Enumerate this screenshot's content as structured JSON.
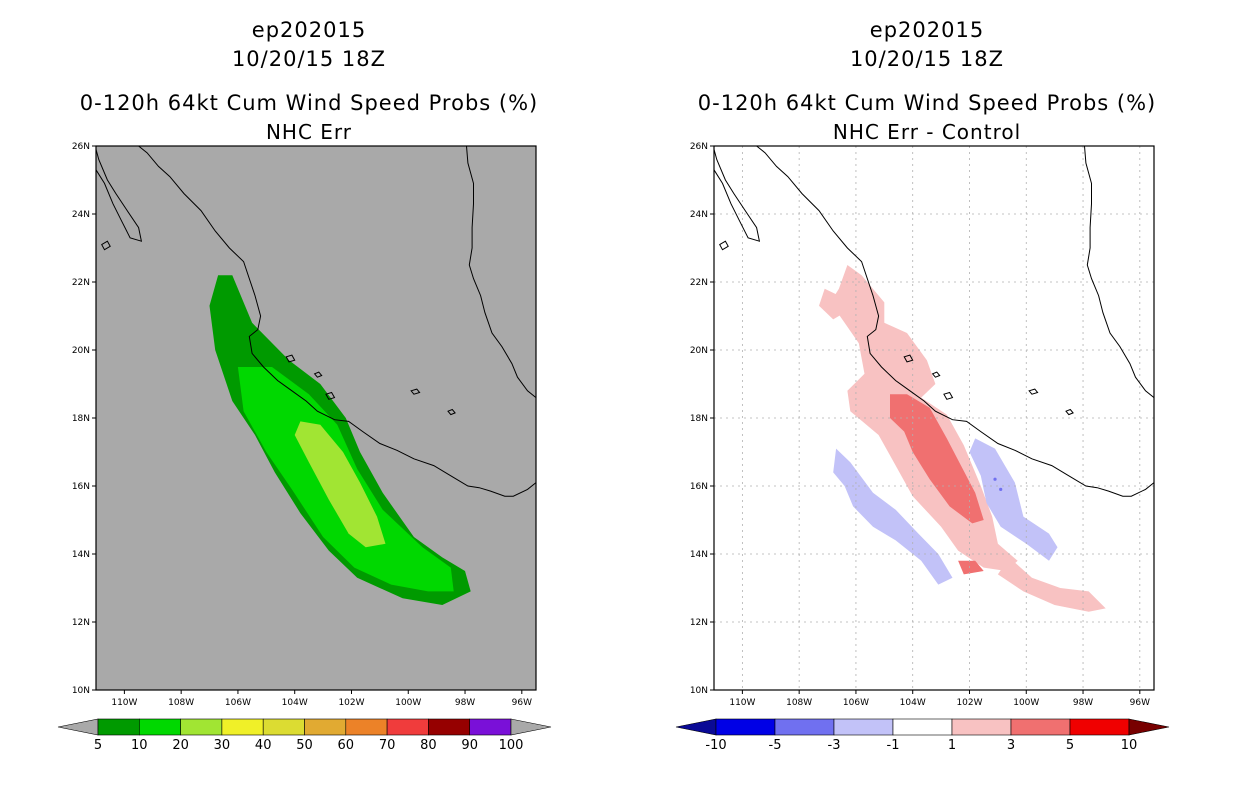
{
  "chart_data": [
    {
      "type": "heatmap",
      "storm": "ep202015",
      "datetime": "10/20/15 18Z",
      "title": "0-120h 64kt Cum Wind Speed Probs (%)",
      "subtitle": "NHC Err",
      "xlabel": "",
      "ylabel": "",
      "xlim": [
        -111,
        -95.5
      ],
      "ylim": [
        10,
        26
      ],
      "x_ticks": [
        -110,
        -108,
        -106,
        -104,
        -102,
        -100,
        -98,
        -96
      ],
      "x_tick_labels": [
        "110W",
        "108W",
        "106W",
        "104W",
        "102W",
        "100W",
        "98W",
        "96W"
      ],
      "y_ticks": [
        10,
        12,
        14,
        16,
        18,
        20,
        22,
        24,
        26
      ],
      "y_tick_labels": [
        "10N",
        "12N",
        "14N",
        "16N",
        "18N",
        "20N",
        "22N",
        "24N",
        "26N"
      ],
      "grid": false,
      "background": "#a9a9a9",
      "colorbar": {
        "levels": [
          "5",
          "10",
          "20",
          "30",
          "40",
          "50",
          "60",
          "70",
          "80",
          "90",
          "100"
        ],
        "colors": [
          "#009a00",
          "#00d800",
          "#a1e533",
          "#f0f028",
          "#dcdc32",
          "#e1aa32",
          "#ec8228",
          "#f03c3c",
          "#960000",
          "#7a10d8"
        ],
        "left_extension": "#a9a9a9",
        "right_extension": "#a9a9a9"
      },
      "filled_regions": [
        {
          "level": "5-10",
          "color": "#009a00",
          "polygon": [
            [
              -106.7,
              22.2
            ],
            [
              -106.2,
              22.2
            ],
            [
              -105.5,
              20.8
            ],
            [
              -104.2,
              19.7
            ],
            [
              -103.1,
              19
            ],
            [
              -102.2,
              18
            ],
            [
              -101.7,
              17
            ],
            [
              -100.9,
              15.8
            ],
            [
              -99.8,
              14.5
            ],
            [
              -98.8,
              13.9
            ],
            [
              -98,
              13.5
            ],
            [
              -97.8,
              12.9
            ],
            [
              -98.8,
              12.5
            ],
            [
              -100.2,
              12.7
            ],
            [
              -101.8,
              13.3
            ],
            [
              -102.8,
              14.1
            ],
            [
              -103.8,
              15.2
            ],
            [
              -104.7,
              16.4
            ],
            [
              -105.4,
              17.5
            ],
            [
              -106.2,
              18.5
            ],
            [
              -106.8,
              20
            ],
            [
              -107,
              21.3
            ]
          ]
        },
        {
          "level": "10-20",
          "color": "#00d800",
          "polygon": [
            [
              -106,
              19.5
            ],
            [
              -104.8,
              19.5
            ],
            [
              -103.5,
              18.7
            ],
            [
              -102.5,
              17.8
            ],
            [
              -101.8,
              16.5
            ],
            [
              -100.9,
              15.3
            ],
            [
              -99.5,
              14.2
            ],
            [
              -98.5,
              13.6
            ],
            [
              -98.4,
              12.9
            ],
            [
              -99.3,
              12.9
            ],
            [
              -100.6,
              13.1
            ],
            [
              -101.9,
              13.6
            ],
            [
              -103,
              14.5
            ],
            [
              -104.1,
              15.9
            ],
            [
              -105,
              17
            ],
            [
              -105.8,
              18.2
            ]
          ]
        },
        {
          "level": "20-30",
          "color": "#a1e533",
          "polygon": [
            [
              -103.8,
              17.9
            ],
            [
              -103.1,
              17.8
            ],
            [
              -102.3,
              17
            ],
            [
              -101.7,
              16.1
            ],
            [
              -101.1,
              15.1
            ],
            [
              -100.8,
              14.3
            ],
            [
              -101.5,
              14.2
            ],
            [
              -102.1,
              14.6
            ],
            [
              -102.8,
              15.6
            ],
            [
              -103.5,
              16.7
            ],
            [
              -104,
              17.5
            ]
          ]
        }
      ]
    },
    {
      "type": "heatmap",
      "storm": "ep202015",
      "datetime": "10/20/15 18Z",
      "title": "0-120h 64kt Cum Wind Speed Probs (%)",
      "subtitle": "NHC Err - Control",
      "xlabel": "",
      "ylabel": "",
      "xlim": [
        -111,
        -95.5
      ],
      "ylim": [
        10,
        26
      ],
      "x_ticks": [
        -110,
        -108,
        -106,
        -104,
        -102,
        -100,
        -98,
        -96
      ],
      "x_tick_labels": [
        "110W",
        "108W",
        "106W",
        "104W",
        "102W",
        "100W",
        "98W",
        "96W"
      ],
      "y_ticks": [
        10,
        12,
        14,
        16,
        18,
        20,
        22,
        24,
        26
      ],
      "y_tick_labels": [
        "10N",
        "12N",
        "14N",
        "16N",
        "18N",
        "20N",
        "22N",
        "24N",
        "26N"
      ],
      "grid": true,
      "background": "#ffffff",
      "colorbar": {
        "levels": [
          "-10",
          "-5",
          "-3",
          "-1",
          "1",
          "3",
          "5",
          "10"
        ],
        "colors": [
          "#0000e6",
          "#7070f0",
          "#c2c2f8",
          "#ffffff",
          "#f8c2c2",
          "#f07070",
          "#f00000"
        ],
        "left_extension": "#0a0a96",
        "right_extension": "#780000"
      },
      "filled_regions": [
        {
          "level": "1-3",
          "color": "#f8c2c2",
          "polygon": [
            [
              -106.3,
              22.5
            ],
            [
              -105.8,
              22.2
            ],
            [
              -105,
              21.4
            ],
            [
              -105,
              20.8
            ],
            [
              -104.2,
              20.5
            ],
            [
              -103.5,
              19.7
            ],
            [
              -103.2,
              19
            ],
            [
              -103.7,
              18.6
            ],
            [
              -102.8,
              18.1
            ],
            [
              -102.2,
              17.2
            ],
            [
              -101.6,
              16
            ],
            [
              -101.2,
              15.1
            ],
            [
              -101,
              14.3
            ],
            [
              -100.3,
              13.8
            ],
            [
              -100.7,
              13.5
            ],
            [
              -101.5,
              13.6
            ],
            [
              -102.4,
              14.1
            ],
            [
              -103,
              14.8
            ],
            [
              -104,
              15.7
            ],
            [
              -104.8,
              16.9
            ],
            [
              -105.2,
              17.5
            ],
            [
              -106.2,
              18.2
            ],
            [
              -106.3,
              18.8
            ],
            [
              -105.7,
              19.3
            ],
            [
              -105.9,
              20.2
            ],
            [
              -106.4,
              20.8
            ],
            [
              -106.9,
              21.4
            ],
            [
              -106.6,
              21.8
            ]
          ]
        },
        {
          "level": "1-3",
          "color": "#f8c2c2",
          "polygon": [
            [
              -107.1,
              21.8
            ],
            [
              -106.6,
              21.6
            ],
            [
              -106.2,
              21.2
            ],
            [
              -106.8,
              20.9
            ],
            [
              -107.3,
              21.3
            ]
          ]
        },
        {
          "level": "1-3",
          "color": "#f8c2c2",
          "polygon": [
            [
              -100.6,
              13.9
            ],
            [
              -99.8,
              13.3
            ],
            [
              -98.8,
              13
            ],
            [
              -97.8,
              12.9
            ],
            [
              -97.2,
              12.4
            ],
            [
              -97.8,
              12.3
            ],
            [
              -99,
              12.5
            ],
            [
              -100.1,
              12.9
            ],
            [
              -101,
              13.4
            ]
          ]
        },
        {
          "level": "3-5",
          "color": "#f07070",
          "polygon": [
            [
              -104.8,
              18.7
            ],
            [
              -104.2,
              18.7
            ],
            [
              -103.4,
              18.3
            ],
            [
              -102.8,
              17.4
            ],
            [
              -102.3,
              16.6
            ],
            [
              -101.8,
              15.8
            ],
            [
              -101.5,
              15
            ],
            [
              -101.9,
              14.9
            ],
            [
              -102.7,
              15.4
            ],
            [
              -103.4,
              16.2
            ],
            [
              -104,
              17
            ],
            [
              -104.3,
              17.6
            ],
            [
              -104.8,
              18
            ]
          ]
        },
        {
          "level": "3-5",
          "color": "#f07070",
          "polygon": [
            [
              -101.8,
              13.8
            ],
            [
              -101.5,
              13.5
            ],
            [
              -102.2,
              13.4
            ],
            [
              -102.4,
              13.8
            ]
          ]
        },
        {
          "level": "-1--3",
          "color": "#c2c2f8",
          "polygon": [
            [
              -106.8,
              16.4
            ],
            [
              -106.4,
              16
            ],
            [
              -106.1,
              15.4
            ],
            [
              -105.4,
              14.8
            ],
            [
              -104.6,
              14.4
            ],
            [
              -103.7,
              13.8
            ],
            [
              -103.1,
              13.1
            ],
            [
              -102.6,
              13.3
            ],
            [
              -103.1,
              14
            ],
            [
              -103.8,
              14.6
            ],
            [
              -104.6,
              15.3
            ],
            [
              -105.4,
              15.8
            ],
            [
              -106.2,
              16.7
            ],
            [
              -106.7,
              17.1
            ]
          ]
        },
        {
          "level": "-1--3",
          "color": "#c2c2f8",
          "polygon": [
            [
              -101.8,
              17.4
            ],
            [
              -101.1,
              17.1
            ],
            [
              -100.4,
              16.1
            ],
            [
              -100.1,
              15.1
            ],
            [
              -99.2,
              14.6
            ],
            [
              -98.9,
              14.2
            ],
            [
              -99.2,
              13.8
            ],
            [
              -100,
              14.3
            ],
            [
              -100.9,
              14.8
            ],
            [
              -101.4,
              15.5
            ],
            [
              -101.6,
              16.3
            ],
            [
              -102,
              17
            ]
          ]
        }
      ],
      "point_markers": [
        {
          "x": -104.6,
          "y": 18.5,
          "color": "#f07070"
        },
        {
          "x": -101.1,
          "y": 16.2,
          "color": "#7070f0"
        },
        {
          "x": -100.9,
          "y": 15.9,
          "color": "#7070f0"
        }
      ]
    }
  ]
}
